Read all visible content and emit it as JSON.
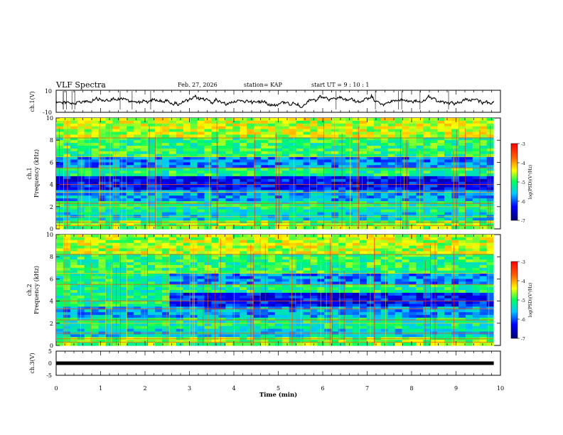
{
  "header": {
    "title": "VLF Spectra",
    "date": "Feb. 27, 2026",
    "station": "station= KAP",
    "start": "start  UT =   9 : 10 : 1"
  },
  "chart_data": [
    {
      "type": "line",
      "name": "ch1-waveform",
      "ylabel": "ch.1(V)",
      "ylim": [
        -10,
        10
      ],
      "yticks": [
        "10",
        "-10"
      ],
      "xlim": [
        0,
        10
      ],
      "description_values": [
        0.8,
        4.3
      ]
    },
    {
      "type": "heatmap",
      "name": "ch1-spectrogram",
      "ylabel": "ch.1\nFrequency (kHz)",
      "ylim": [
        0,
        10
      ],
      "yticks": [
        "0",
        "2",
        "4",
        "6",
        "8",
        "10"
      ],
      "xlim": [
        0,
        10
      ],
      "colorbar": {
        "label": "log(PSD)(V²/Hz)",
        "range": [
          -7,
          -3
        ],
        "ticks": [
          "-3",
          "-4",
          "-5",
          "-6",
          "-7"
        ]
      }
    },
    {
      "type": "heatmap",
      "name": "ch2-spectrogram",
      "ylabel": "ch.2\nFrequency (kHz)",
      "ylim": [
        0,
        10
      ],
      "yticks": [
        "0",
        "2",
        "4",
        "6",
        "8",
        "10"
      ],
      "xlim": [
        0,
        10
      ],
      "colorbar": {
        "label": "log(PSD)(V²/Hz)",
        "range": [
          -7,
          -3
        ],
        "ticks": [
          "-3",
          "-4",
          "-5",
          "-6",
          "-7"
        ]
      }
    },
    {
      "type": "line",
      "name": "ch3-signal",
      "ylabel": "ch.3(V)",
      "ylim": [
        -5,
        5
      ],
      "yticks": [
        "5",
        "0",
        "-5"
      ],
      "xlim": [
        0,
        10
      ],
      "level": 0
    }
  ],
  "xaxis": {
    "label": "Time  (min)",
    "ticks": [
      "0",
      "1",
      "2",
      "3",
      "4",
      "5",
      "6",
      "7",
      "8",
      "9",
      "10"
    ]
  },
  "labels": {
    "ch1_ylabel": "ch.1(V)",
    "sp1_ylabel_a": "ch.1",
    "sp1_ylabel_b": "Frequency (kHz)",
    "sp2_ylabel_a": "ch.2",
    "sp2_ylabel_b": "Frequency (kHz)",
    "ch3_ylabel": "ch.3(V)",
    "cb_label": "log(PSD)(V²/Hz)"
  }
}
